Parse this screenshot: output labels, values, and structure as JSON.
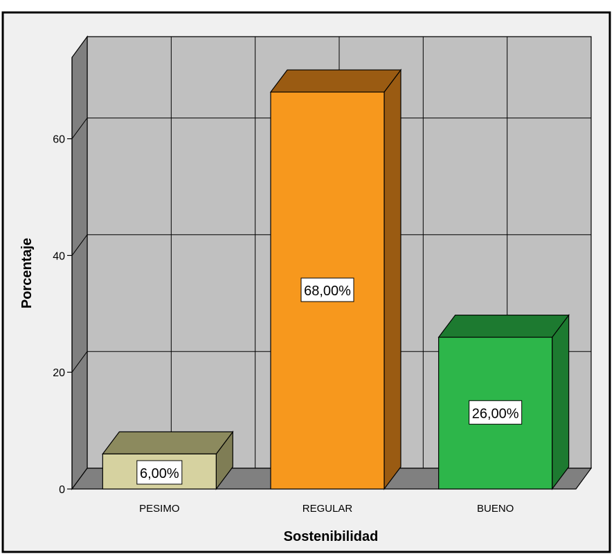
{
  "chart_data": {
    "type": "bar",
    "style": "3d",
    "categories": [
      "PESIMO",
      "REGULAR",
      "BUENO"
    ],
    "values": [
      6,
      68,
      26
    ],
    "data_labels": [
      "6,00%",
      "68,00%",
      "26,00%"
    ],
    "xlabel": "Sostenibilidad",
    "ylabel": "Porcentaje",
    "ylim": [
      0,
      75
    ],
    "yticks": [
      "0",
      "20",
      "40",
      "60"
    ],
    "ytick_values": [
      0,
      20,
      40,
      60
    ],
    "grid": true,
    "colors": {
      "bar_fronts": [
        "#d6d2a0",
        "#f7981d",
        "#2db64a"
      ],
      "bar_tops": [
        "#8c8a5e",
        "#9a5b12",
        "#1d7a30"
      ],
      "bar_sides": [
        "#7f7d55",
        "#9a5b12",
        "#1d7a30"
      ],
      "wall": "#c0c0c0",
      "side_wall": "#808080",
      "floor": "#808080",
      "frame_background": "#f0f0f0"
    }
  }
}
